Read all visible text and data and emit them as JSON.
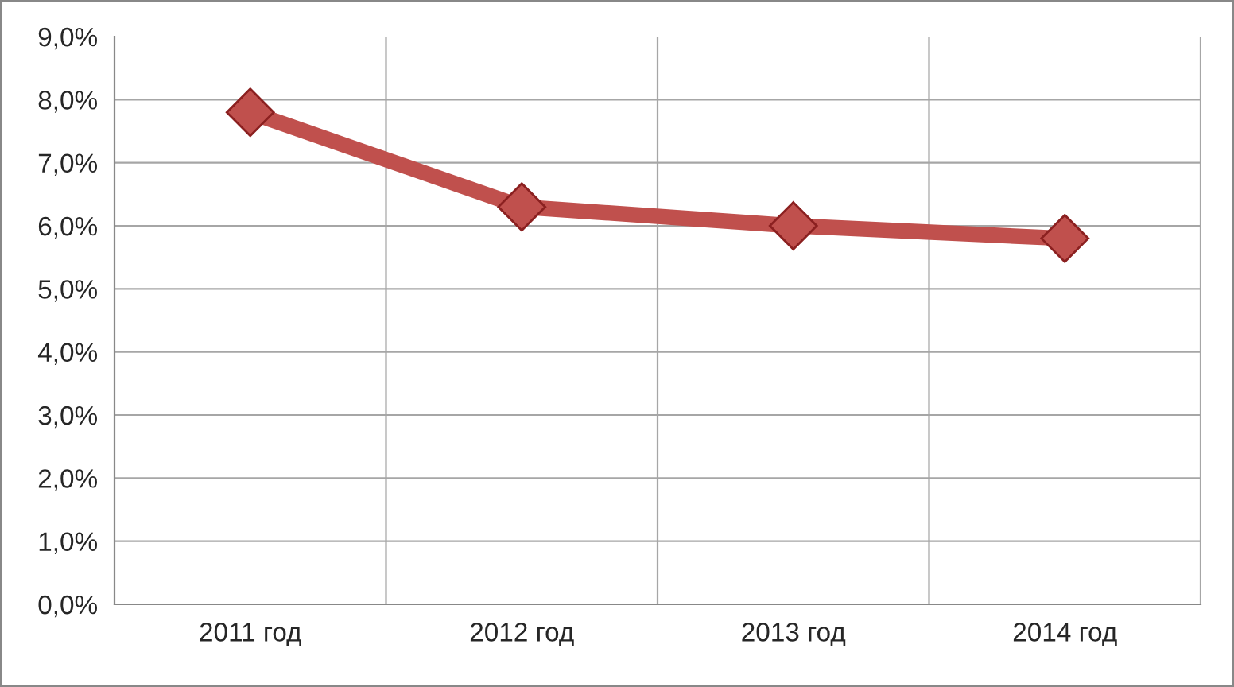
{
  "chart_data": {
    "type": "line",
    "categories": [
      "2011 год",
      "2012 год",
      "2013 год",
      "2014 год"
    ],
    "series": [
      {
        "color": "#c0504d",
        "values": [
          7.8,
          6.3,
          6.0,
          5.8
        ]
      }
    ],
    "ylim": [
      0,
      9
    ],
    "yticks": [
      {
        "value": 0,
        "label": "0,0%"
      },
      {
        "value": 1,
        "label": "1,0%"
      },
      {
        "value": 2,
        "label": "2,0%"
      },
      {
        "value": 3,
        "label": "3,0%"
      },
      {
        "value": 4,
        "label": "4,0%"
      },
      {
        "value": 5,
        "label": "5,0%"
      },
      {
        "value": 6,
        "label": "6,0%"
      },
      {
        "value": 7,
        "label": "7,0%"
      },
      {
        "value": 8,
        "label": "8,0%"
      },
      {
        "value": 9,
        "label": "9,0%"
      }
    ],
    "grid": true,
    "marker": "diamond",
    "line_style": "solid"
  }
}
